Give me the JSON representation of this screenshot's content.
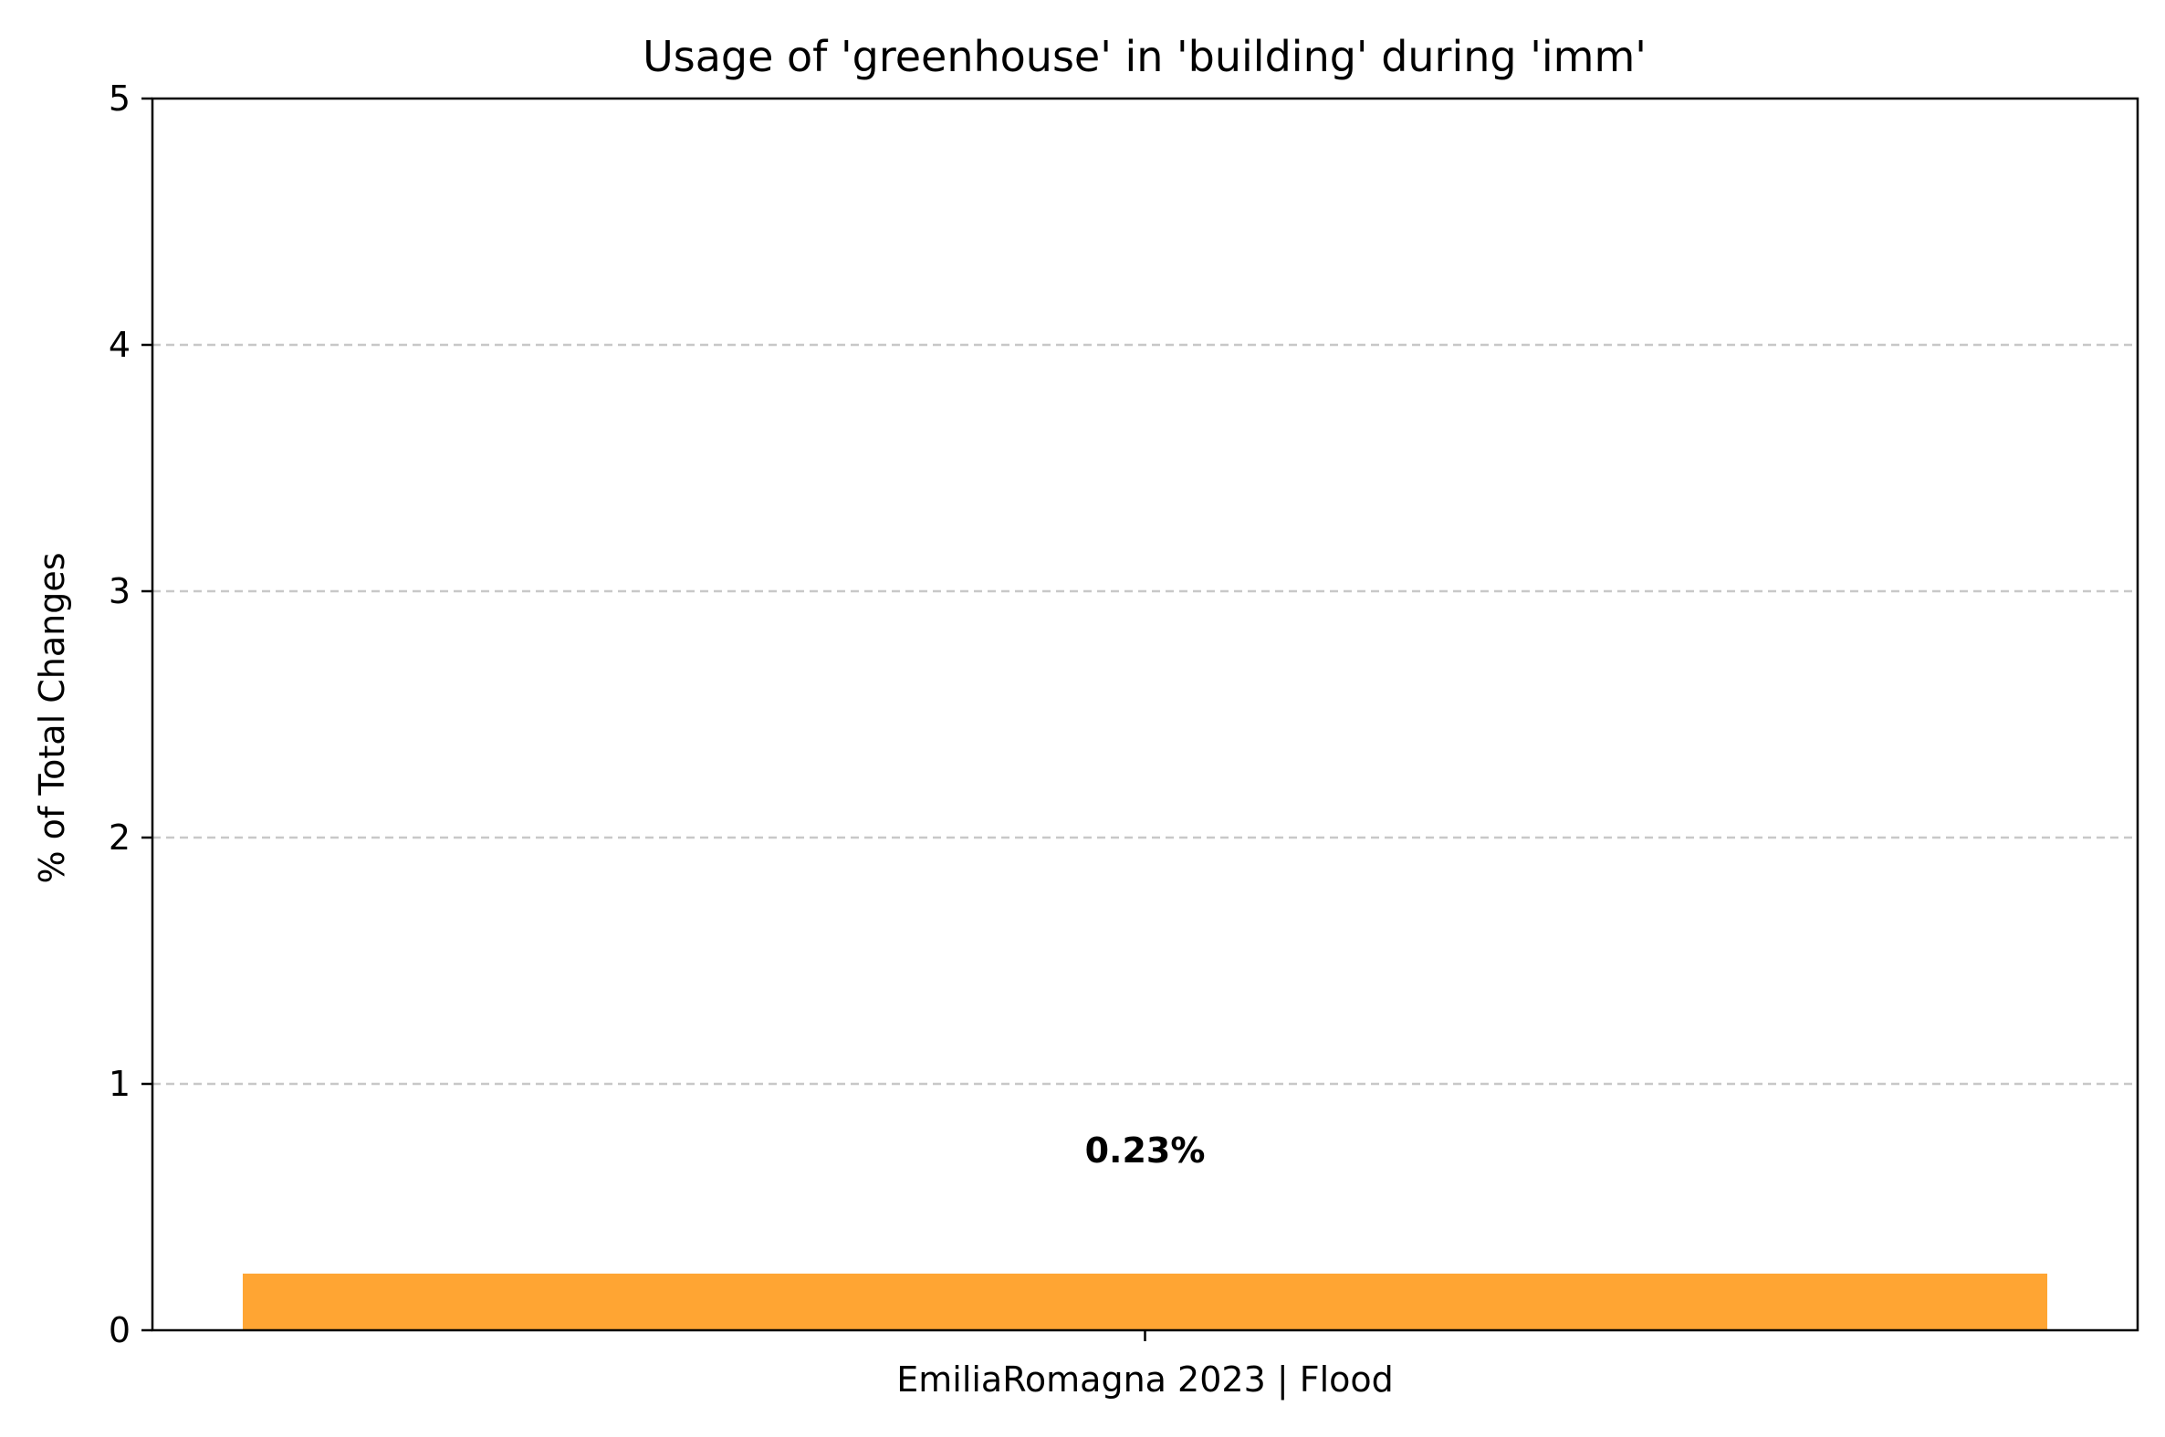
{
  "chart_data": {
    "type": "bar",
    "title": "Usage of 'greenhouse' in 'building' during 'imm'",
    "xlabel": "",
    "ylabel": "% of Total Changes",
    "categories": [
      "EmiliaRomagna 2023 | Flood"
    ],
    "values": [
      0.23
    ],
    "value_labels": [
      "0.23%"
    ],
    "ylim": [
      0,
      5
    ],
    "yticks": [
      0,
      1,
      2,
      3,
      4,
      5
    ],
    "ytick_labels": [
      "0",
      "1",
      "2",
      "3",
      "4",
      "5"
    ],
    "grid": "y dashed",
    "legend": "none",
    "bar_color": "#ffa533"
  }
}
